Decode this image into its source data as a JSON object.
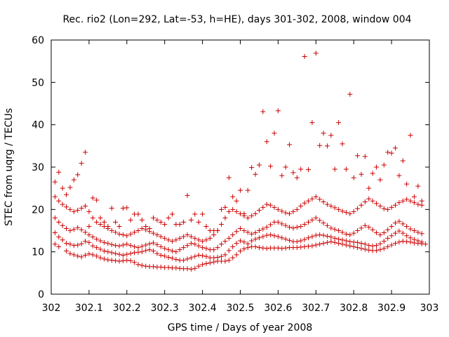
{
  "chart_data": {
    "type": "scatter",
    "title": "Rec. rio2 (Lon=292, Lat=-53, h=HE), days 301-302, 2008, window 004",
    "xlabel": "GPS time / Days of year 2008",
    "ylabel": "STEC from uqrg / TECUs",
    "xlim": [
      302,
      303
    ],
    "ylim": [
      0,
      60
    ],
    "xticks": [
      302,
      302.1,
      302.2,
      302.3,
      302.4,
      302.5,
      302.6,
      302.7,
      302.8,
      302.9,
      303
    ],
    "xtick_labels": [
      "302",
      "302.1",
      "302.2",
      "302.3",
      "302.4",
      "302.5",
      "302.6",
      "302.7",
      "302.8",
      "302.9",
      "303"
    ],
    "yticks": [
      0,
      10,
      20,
      30,
      40,
      50,
      60
    ],
    "ytick_labels": [
      "0",
      "10",
      "20",
      "30",
      "40",
      "50",
      "60"
    ],
    "grid": false,
    "legend": "none",
    "marker": "plus",
    "color": "#cc0000",
    "series": [
      {
        "x": [
          302.01,
          302.02,
          302.04,
          302.05,
          302.06,
          302.07,
          302.08,
          302.09,
          302.1,
          302.11,
          302.12,
          302.13,
          302.14,
          302.15,
          302.16,
          302.17,
          302.18,
          302.19,
          302.2,
          302.21,
          302.22,
          302.23,
          302.24,
          302.25,
          302.26,
          302.27,
          302.28,
          302.29,
          302.3,
          302.31,
          302.32,
          302.33,
          302.34,
          302.35,
          302.36,
          302.37,
          302.38,
          302.39,
          302.4,
          302.41,
          302.42,
          302.43,
          302.44,
          302.45,
          302.46,
          302.47,
          302.48,
          302.49,
          302.5,
          302.51,
          302.52,
          302.53,
          302.54,
          302.55,
          302.56,
          302.57,
          302.58,
          302.59,
          302.6,
          302.61,
          302.62,
          302.63,
          302.64,
          302.65,
          302.66,
          302.67,
          302.68,
          302.69,
          302.7,
          302.71,
          302.72,
          302.73,
          302.74,
          302.75,
          302.76,
          302.77,
          302.78,
          302.79,
          302.8,
          302.81,
          302.82,
          302.83,
          302.84,
          302.85,
          302.86,
          302.87,
          302.88,
          302.89,
          302.9,
          302.91,
          302.92,
          302.93,
          302.94,
          302.95,
          302.96,
          302.97,
          302.98,
          302.99
        ],
        "y": [
          11.8,
          11.2,
          10.2,
          9.6,
          9.3,
          9.0,
          8.8,
          9.2,
          9.5,
          9.3,
          9.0,
          8.6,
          8.3,
          8.1,
          8.0,
          7.9,
          7.8,
          7.9,
          8.0,
          7.9,
          7.5,
          7.0,
          6.8,
          6.6,
          6.5,
          6.5,
          6.4,
          6.4,
          6.3,
          6.3,
          6.2,
          6.2,
          6.1,
          6.0,
          6.0,
          5.9,
          6.1,
          6.6,
          7.0,
          7.2,
          7.4,
          7.6,
          7.8,
          7.8,
          7.8,
          8.0,
          8.6,
          9.3,
          10.2,
          10.7,
          11.0,
          11.2,
          11.2,
          11.0,
          10.9,
          10.8,
          10.9,
          10.9,
          10.9,
          10.8,
          10.9,
          11.0,
          11.0,
          11.0,
          11.1,
          11.2,
          11.3,
          11.4,
          11.6,
          11.8,
          12.0,
          12.2,
          12.4,
          12.2,
          12.0,
          11.8,
          11.6,
          11.4,
          11.2,
          11.0,
          10.8,
          10.6,
          10.4,
          10.3,
          10.3,
          10.5,
          10.8,
          11.2,
          11.6,
          12.0,
          12.3,
          12.5,
          12.4,
          12.3,
          12.1,
          12.0,
          11.9,
          11.8
        ]
      },
      {
        "x": [
          302.01,
          302.02,
          302.03,
          302.04,
          302.05,
          302.06,
          302.07,
          302.08,
          302.09,
          302.1,
          302.11,
          302.12,
          302.13,
          302.14,
          302.15,
          302.16,
          302.17,
          302.18,
          302.19,
          302.2,
          302.21,
          302.22,
          302.23,
          302.24,
          302.25,
          302.26,
          302.27,
          302.28,
          302.29,
          302.3,
          302.31,
          302.32,
          302.33,
          302.34,
          302.35,
          302.36,
          302.37,
          302.38,
          302.39,
          302.4,
          302.41,
          302.42,
          302.43,
          302.44,
          302.45,
          302.46,
          302.47,
          302.48,
          302.49,
          302.5,
          302.51,
          302.52,
          302.53,
          302.54,
          302.55,
          302.56,
          302.57,
          302.58,
          302.59,
          302.6,
          302.61,
          302.62,
          302.63,
          302.64,
          302.65,
          302.66,
          302.67,
          302.68,
          302.69,
          302.7,
          302.71,
          302.72,
          302.73,
          302.74,
          302.75,
          302.76,
          302.77,
          302.78,
          302.79,
          302.8,
          302.81,
          302.82,
          302.83,
          302.84,
          302.85,
          302.86,
          302.87,
          302.88,
          302.89,
          302.9,
          302.91,
          302.92,
          302.93,
          302.94,
          302.95,
          302.96,
          302.97,
          302.98
        ],
        "y": [
          14.5,
          13.5,
          12.8,
          12.0,
          11.8,
          11.5,
          11.6,
          11.9,
          12.5,
          12.2,
          11.4,
          11.0,
          10.6,
          10.2,
          10.0,
          9.8,
          9.6,
          9.4,
          9.2,
          9.4,
          9.6,
          9.8,
          9.9,
          10.0,
          10.3,
          10.5,
          10.2,
          9.6,
          9.2,
          9.0,
          8.7,
          8.5,
          8.2,
          8.0,
          8.0,
          8.3,
          8.6,
          8.9,
          9.2,
          9.1,
          8.9,
          8.6,
          8.6,
          8.7,
          8.9,
          9.3,
          10.3,
          11.2,
          12.0,
          12.6,
          12.3,
          11.9,
          12.6,
          13.0,
          13.3,
          13.6,
          13.9,
          14.0,
          13.8,
          13.6,
          13.3,
          13.0,
          12.7,
          12.4,
          12.4,
          12.6,
          12.9,
          13.3,
          13.6,
          13.9,
          14.0,
          13.9,
          13.7,
          13.5,
          13.2,
          13.0,
          12.8,
          12.6,
          12.4,
          12.3,
          12.2,
          12.0,
          11.8,
          11.5,
          11.4,
          11.5,
          11.9,
          12.5,
          13.2,
          13.8,
          14.4,
          14.9,
          14.4,
          13.8,
          13.3,
          12.9,
          12.6,
          12.3
        ]
      },
      {
        "x": [
          302.01,
          302.02,
          302.03,
          302.04,
          302.05,
          302.06,
          302.07,
          302.08,
          302.09,
          302.1,
          302.11,
          302.12,
          302.13,
          302.14,
          302.15,
          302.16,
          302.17,
          302.18,
          302.19,
          302.2,
          302.21,
          302.22,
          302.23,
          302.24,
          302.25,
          302.26,
          302.27,
          302.28,
          302.29,
          302.3,
          302.31,
          302.32,
          302.33,
          302.34,
          302.35,
          302.36,
          302.37,
          302.38,
          302.39,
          302.4,
          302.41,
          302.42,
          302.43,
          302.44,
          302.45,
          302.46,
          302.47,
          302.48,
          302.49,
          302.5,
          302.51,
          302.52,
          302.53,
          302.54,
          302.55,
          302.56,
          302.57,
          302.58,
          302.59,
          302.6,
          302.61,
          302.62,
          302.63,
          302.64,
          302.65,
          302.66,
          302.67,
          302.68,
          302.69,
          302.7,
          302.71,
          302.72,
          302.73,
          302.74,
          302.75,
          302.76,
          302.77,
          302.78,
          302.79,
          302.8,
          302.81,
          302.82,
          302.83,
          302.84,
          302.85,
          302.86,
          302.87,
          302.88,
          302.89,
          302.9,
          302.91,
          302.92,
          302.93,
          302.94,
          302.95,
          302.96,
          302.97,
          302.98
        ],
        "y": [
          18.0,
          17.0,
          16.2,
          15.5,
          15.0,
          15.3,
          15.7,
          15.2,
          14.6,
          14.0,
          13.5,
          13.0,
          12.6,
          12.2,
          12.0,
          11.7,
          11.5,
          11.4,
          11.6,
          11.8,
          11.5,
          11.2,
          11.0,
          11.3,
          11.6,
          11.9,
          12.1,
          11.7,
          11.2,
          10.8,
          10.5,
          10.2,
          10.0,
          10.5,
          11.0,
          11.5,
          12.0,
          11.8,
          11.4,
          11.0,
          10.8,
          10.5,
          10.5,
          11.0,
          11.8,
          12.5,
          13.2,
          14.0,
          14.8,
          15.5,
          15.0,
          14.6,
          14.2,
          14.5,
          15.0,
          15.4,
          15.8,
          16.4,
          17.0,
          17.0,
          16.6,
          16.2,
          15.8,
          15.6,
          15.8,
          16.0,
          16.5,
          17.0,
          17.5,
          18.0,
          17.4,
          16.8,
          16.2,
          15.6,
          15.3,
          15.0,
          14.6,
          14.2,
          14.0,
          14.4,
          15.0,
          15.6,
          16.2,
          15.8,
          15.2,
          14.5,
          14.0,
          14.5,
          15.2,
          16.0,
          16.8,
          17.2,
          16.6,
          16.0,
          15.4,
          15.0,
          14.6,
          14.3
        ]
      },
      {
        "x": [
          302.01,
          302.02,
          302.03,
          302.04,
          302.05,
          302.06,
          302.07,
          302.08,
          302.09,
          302.1,
          302.11,
          302.12,
          302.13,
          302.14,
          302.15,
          302.16,
          302.17,
          302.18,
          302.19,
          302.2,
          302.21,
          302.22,
          302.23,
          302.24,
          302.25,
          302.26,
          302.27,
          302.28,
          302.29,
          302.3,
          302.31,
          302.32,
          302.33,
          302.34,
          302.35,
          302.36,
          302.37,
          302.38,
          302.39,
          302.4,
          302.41,
          302.42,
          302.43,
          302.44,
          302.45,
          302.46,
          302.47,
          302.48,
          302.49,
          302.5,
          302.51,
          302.52,
          302.53,
          302.54,
          302.55,
          302.56,
          302.57,
          302.58,
          302.59,
          302.6,
          302.61,
          302.62,
          302.63,
          302.64,
          302.65,
          302.66,
          302.67,
          302.68,
          302.69,
          302.7,
          302.71,
          302.72,
          302.73,
          302.74,
          302.75,
          302.76,
          302.77,
          302.78,
          302.79,
          302.8,
          302.81,
          302.82,
          302.83,
          302.84,
          302.85,
          302.86,
          302.87,
          302.88,
          302.89,
          302.9,
          302.91,
          302.92,
          302.93,
          302.94,
          302.95,
          302.96,
          302.97,
          302.98
        ],
        "y": [
          23.0,
          22.0,
          21.2,
          20.6,
          20.0,
          19.5,
          19.8,
          20.3,
          20.8,
          19.5,
          18.0,
          17.0,
          16.5,
          16.0,
          15.5,
          15.0,
          14.6,
          14.2,
          14.0,
          13.8,
          14.2,
          14.6,
          15.0,
          15.5,
          15.2,
          14.8,
          14.4,
          14.0,
          13.6,
          13.2,
          12.8,
          12.5,
          12.8,
          13.2,
          13.6,
          14.0,
          13.6,
          13.2,
          12.8,
          12.5,
          12.8,
          13.2,
          14.0,
          15.0,
          16.5,
          18.0,
          19.5,
          20.0,
          19.5,
          19.0,
          18.5,
          18.0,
          18.5,
          19.0,
          19.8,
          20.5,
          21.2,
          21.0,
          20.5,
          20.0,
          19.6,
          19.2,
          19.0,
          19.5,
          20.0,
          20.8,
          21.5,
          22.0,
          22.5,
          23.0,
          22.4,
          21.8,
          21.2,
          20.8,
          20.4,
          20.0,
          19.6,
          19.3,
          19.0,
          19.5,
          20.2,
          21.0,
          21.8,
          22.5,
          22.0,
          21.4,
          20.8,
          20.2,
          20.0,
          20.5,
          21.0,
          21.6,
          22.0,
          22.4,
          22.0,
          21.6,
          21.2,
          21.0
        ]
      },
      {
        "x": [
          302.01,
          302.02,
          302.03,
          302.04,
          302.05,
          302.06,
          302.07,
          302.08,
          302.09,
          302.1,
          302.11,
          302.12,
          302.13,
          302.14,
          302.15,
          302.16,
          302.17,
          302.18,
          302.19,
          302.2,
          302.21,
          302.22,
          302.23,
          302.24,
          302.25,
          302.26,
          302.27,
          302.28,
          302.29,
          302.3,
          302.31,
          302.32,
          302.33,
          302.34,
          302.35,
          302.36,
          302.37,
          302.38,
          302.39,
          302.4,
          302.41,
          302.42,
          302.43,
          302.44,
          302.45,
          302.46,
          302.47,
          302.48,
          302.49,
          302.5,
          302.51,
          302.52,
          302.53,
          302.54,
          302.55,
          302.56,
          302.57,
          302.58,
          302.59,
          302.6,
          302.61,
          302.62,
          302.63,
          302.64,
          302.65,
          302.66,
          302.67,
          302.68,
          302.69,
          302.7,
          302.71,
          302.72,
          302.73,
          302.74,
          302.75,
          302.76,
          302.77,
          302.78,
          302.79,
          302.8,
          302.81,
          302.82,
          302.83,
          302.84,
          302.85,
          302.86,
          302.87,
          302.88,
          302.89,
          302.9,
          302.91,
          302.92,
          302.93,
          302.94,
          302.95,
          302.96,
          302.97,
          302.98
        ],
        "y": [
          26.5,
          28.8,
          25.0,
          23.5,
          25.2,
          27.0,
          28.2,
          30.9,
          33.5,
          16.0,
          22.7,
          22.2,
          18.0,
          17.0,
          16.0,
          20.3,
          17.0,
          16.0,
          20.3,
          20.4,
          17.5,
          18.9,
          18.9,
          17.5,
          16.0,
          15.5,
          18.0,
          17.5,
          17.0,
          16.5,
          18.0,
          18.9,
          16.5,
          16.5,
          17.0,
          23.3,
          17.5,
          18.9,
          17.0,
          18.9,
          16.0,
          15.0,
          15.0,
          15.0,
          20.0,
          20.5,
          27.5,
          23.0,
          22.0,
          24.5,
          19.0,
          24.5,
          29.9,
          28.3,
          30.5,
          43.1,
          36.0,
          30.2,
          38.0,
          43.3,
          28.0,
          30.0,
          35.3,
          28.7,
          27.5,
          29.5,
          56.1,
          29.4,
          40.5,
          56.9,
          35.1,
          38.0,
          35.0,
          37.5,
          29.5,
          40.5,
          35.5,
          29.5,
          47.2,
          27.5,
          32.7,
          28.3,
          32.5,
          25.0,
          28.5,
          30.0,
          27.0,
          30.5,
          33.5,
          33.3,
          34.5,
          28.0,
          31.5,
          26.0,
          37.5,
          23.0,
          25.5,
          22.0
        ]
      }
    ]
  }
}
